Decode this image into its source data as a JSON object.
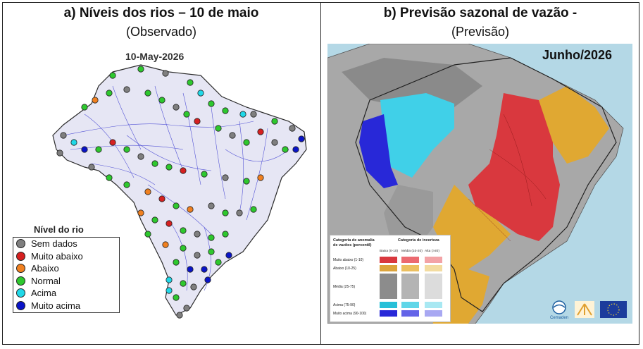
{
  "panel_a": {
    "title": "a)   Níveis dos rios – 10 de maio",
    "subtitle": "(Observado)",
    "map_date": "10-May-2026",
    "legend_title": "Nível do rio",
    "legend": [
      {
        "label": "Sem dados",
        "color": "#7f7f7f"
      },
      {
        "label": "Muito abaixo",
        "color": "#d62020"
      },
      {
        "label": "Abaixo",
        "color": "#f08020"
      },
      {
        "label": "Normal",
        "color": "#2ec82e"
      },
      {
        "label": "Acima",
        "color": "#20d8e8"
      },
      {
        "label": "Muito acima",
        "color": "#0a14c8"
      }
    ]
  },
  "panel_b": {
    "title": "b)   Previsão sazonal de vazão -",
    "subtitle": "(Previsão)",
    "month_label": "Junho/2026",
    "legend": {
      "anomaly_header": "Categoria de anomalia de vazões (percentil)",
      "uncertainty_header": "Categoria de incerteza",
      "uncertainty_levels": [
        "Baixa (0-10)",
        "Média (10-20)",
        "Alta (>20)"
      ],
      "categories": [
        {
          "label": "Muito abaixo (1-10)",
          "colors": [
            "#d9383e",
            "#ec6a70",
            "#f3a3a6"
          ]
        },
        {
          "label": "Abaixo (10-25)",
          "colors": [
            "#dca43c",
            "#ecc060",
            "#f3dca0"
          ]
        },
        {
          "label": "Média (25-75)",
          "colors": [
            "#8c8c8c",
            "#b4b4b4",
            "#dcdcdc"
          ]
        },
        {
          "label": "Acima (75-90)",
          "colors": [
            "#28c0d8",
            "#60d6e8",
            "#a8e8f2"
          ]
        },
        {
          "label": "Muito acima (90-100)",
          "colors": [
            "#2828d8",
            "#6464e8",
            "#a8a8f2"
          ]
        }
      ]
    },
    "logos": [
      "Cemaden"
    ]
  },
  "colors": {
    "ocean": "#b4d8e6",
    "land_gray": "#a8a8a8",
    "land_dark": "#7a7a7a",
    "river_blue": "#3a3ad0",
    "red": "#d9383e",
    "orange": "#dca43c",
    "cyan": "#28c0d8",
    "blue": "#2828d8"
  }
}
